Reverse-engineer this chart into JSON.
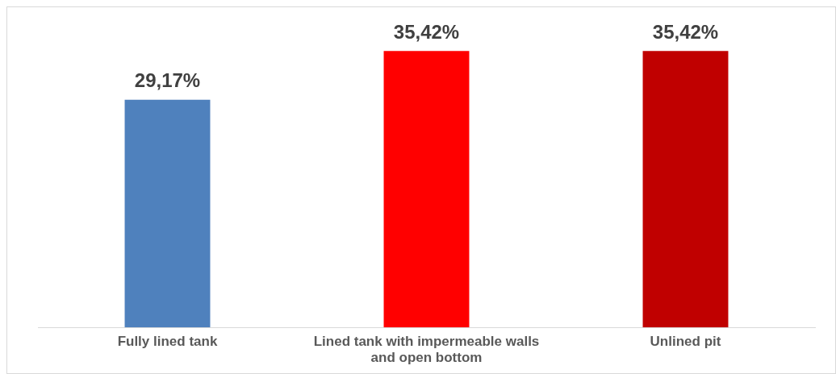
{
  "chart_data": {
    "type": "bar",
    "categories": [
      "Fully lined tank",
      "Lined tank with impermeable walls and open bottom",
      "Unlined pit"
    ],
    "values": [
      29.17,
      35.42,
      35.42
    ],
    "colors": [
      "#4f81bd",
      "#ff0000",
      "#c00000"
    ],
    "value_labels": [
      "29,17%",
      "35,42%",
      "35,42%"
    ],
    "grid": false,
    "legend": false
  }
}
